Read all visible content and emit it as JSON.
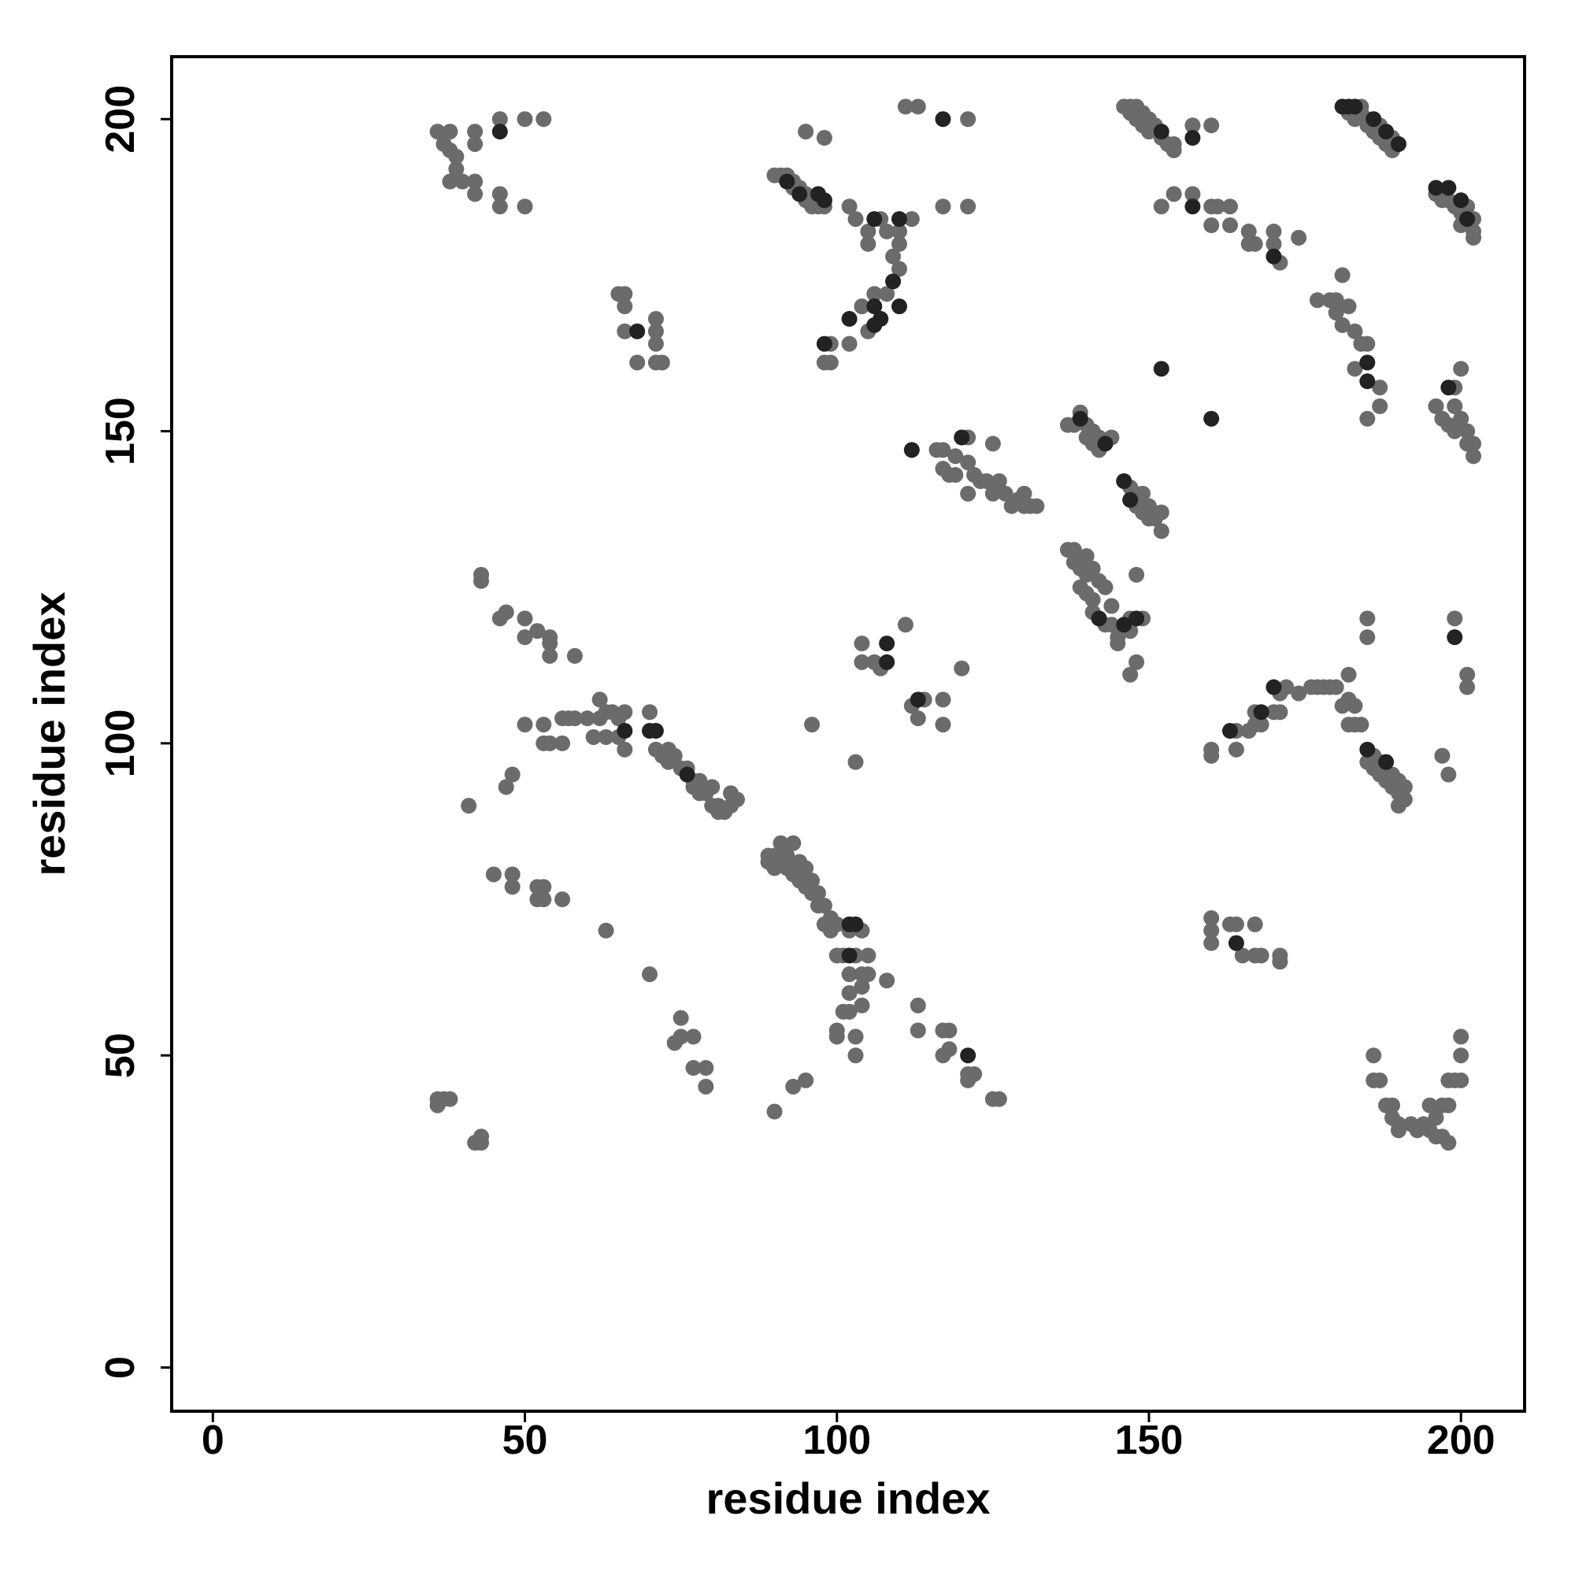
{
  "chart_data": {
    "type": "scatter",
    "xlabel": "residue index",
    "ylabel": "residue index",
    "xlim": [
      -6.6,
      210.2
    ],
    "ylim": [
      -7,
      210
    ],
    "xticks": [
      0,
      50,
      100,
      150,
      200
    ],
    "yticks": [
      0,
      50,
      100,
      150,
      200
    ],
    "series": [
      {
        "color": "#6b6b6b",
        "x": [
          36,
          37,
          38,
          38,
          39,
          39,
          38,
          40,
          42,
          42,
          42,
          42,
          46,
          46,
          46,
          50,
          50,
          53,
          65,
          66,
          66,
          66,
          68,
          71,
          71,
          71,
          71,
          72,
          90,
          91,
          92,
          93,
          93,
          94,
          95,
          95,
          96,
          96,
          97,
          98,
          95,
          98,
          102,
          103,
          105,
          105,
          107,
          108,
          109,
          110,
          110,
          110,
          112,
          104,
          106,
          108,
          105,
          102,
          99,
          98,
          99,
          111,
          113,
          121,
          117,
          121,
          146,
          147,
          147,
          148,
          148,
          149,
          149,
          150,
          150,
          151,
          152,
          153,
          154,
          154,
          157,
          160,
          152,
          154,
          157,
          160,
          160,
          161,
          163,
          163,
          166,
          166,
          167,
          170,
          170,
          171,
          174,
          177,
          179,
          180,
          180,
          181,
          182,
          181,
          183,
          184,
          185,
          187,
          183,
          185,
          187,
          182,
          183,
          184,
          184,
          185,
          185,
          186,
          187,
          187,
          188,
          189,
          189,
          196,
          197,
          197,
          198,
          199,
          200,
          201,
          202,
          202,
          200,
          202,
          196,
          197,
          198,
          199,
          199,
          200,
          200,
          201,
          201,
          202,
          202,
          199,
          137,
          138,
          139,
          140,
          140,
          141,
          141,
          142,
          142,
          144,
          116,
          117,
          117,
          119,
          119,
          121,
          121,
          122,
          123,
          124,
          125,
          126,
          127,
          128,
          129,
          130,
          130,
          131,
          132,
          121,
          125,
          118,
          147,
          148,
          148,
          149,
          149,
          150,
          150,
          151,
          152,
          152,
          137,
          138,
          138,
          139,
          139,
          140,
          140,
          140,
          141,
          141,
          141,
          142,
          143,
          143,
          144,
          144,
          145,
          145,
          147,
          147,
          148,
          147,
          149,
          148,
          96,
          104,
          104,
          106,
          107,
          111,
          112,
          114,
          117,
          113,
          117,
          120,
          103,
          43,
          43,
          46,
          47,
          50,
          50,
          52,
          54,
          54,
          54,
          58,
          56,
          57,
          58,
          60,
          61,
          62,
          62,
          63,
          63,
          64,
          65,
          65,
          66,
          66,
          70,
          71,
          72,
          73,
          73,
          74,
          75,
          76,
          77,
          77,
          78,
          78,
          79,
          80,
          80,
          81,
          81,
          82,
          83,
          84,
          83,
          50,
          53,
          53,
          54,
          56,
          48,
          47,
          41,
          89,
          89,
          90,
          90,
          91,
          91,
          92,
          92,
          93,
          93,
          94,
          94,
          95,
          95,
          96,
          96,
          97,
          97,
          98,
          98,
          99,
          99,
          100,
          102,
          100,
          101,
          103,
          105,
          102,
          104,
          105,
          102,
          104,
          104,
          101,
          102,
          100,
          100,
          103,
          103,
          104,
          108,
          113,
          113,
          117,
          118,
          117,
          118,
          121,
          121,
          122,
          125,
          126,
          95,
          93,
          90,
          45,
          48,
          48,
          52,
          53,
          52,
          53,
          56,
          63,
          70,
          75,
          75,
          74,
          77,
          77,
          79,
          79,
          36,
          37,
          38,
          36,
          42,
          43,
          43,
          160,
          160,
          164,
          164,
          166,
          167,
          167,
          168,
          171,
          171,
          170,
          172,
          174,
          176,
          177,
          178,
          179,
          180,
          182,
          182,
          181,
          183,
          182,
          183,
          184,
          185,
          186,
          186,
          187,
          187,
          188,
          189,
          189,
          190,
          190,
          191,
          191,
          190,
          185,
          185,
          197,
          198,
          199,
          201,
          201,
          160,
          160,
          160,
          163,
          164,
          165,
          167,
          167,
          168,
          171,
          171,
          186,
          186,
          187,
          188,
          189,
          189,
          190,
          190,
          193,
          194,
          195,
          196,
          196,
          197,
          197,
          198,
          198,
          198,
          199,
          200,
          200,
          200,
          195,
          192
        ],
        "values": [
          198,
          196,
          198,
          195,
          194,
          192,
          190,
          190,
          190,
          196,
          198,
          188,
          200,
          188,
          186,
          200,
          186,
          200,
          172,
          172,
          170,
          166,
          161,
          168,
          166,
          164,
          161,
          161,
          191,
          191,
          191,
          190,
          189,
          189,
          188,
          187,
          187,
          186,
          186,
          186,
          198,
          197,
          186,
          184,
          180,
          182,
          184,
          182,
          178,
          182,
          180,
          176,
          184,
          170,
          172,
          172,
          166,
          164,
          164,
          161,
          161,
          202,
          202,
          200,
          186,
          186,
          202,
          202,
          201,
          202,
          200,
          201,
          199,
          200,
          198,
          199,
          197,
          196,
          196,
          195,
          199,
          199,
          186,
          188,
          188,
          186,
          183,
          186,
          186,
          183,
          182,
          180,
          180,
          182,
          180,
          177,
          181,
          171,
          171,
          171,
          169,
          167,
          170,
          175,
          166,
          164,
          164,
          157,
          160,
          152,
          154,
          201,
          200,
          202,
          201,
          200,
          199,
          198,
          199,
          197,
          196,
          197,
          195,
          188,
          188,
          187,
          187,
          186,
          185,
          186,
          184,
          182,
          183,
          181,
          154,
          152,
          151,
          154,
          150,
          160,
          152,
          150,
          148,
          148,
          146,
          157,
          151,
          151,
          153,
          151,
          149,
          150,
          148,
          149,
          147,
          149,
          147,
          147,
          144,
          146,
          143,
          149,
          145,
          143,
          142,
          142,
          140,
          142,
          140,
          138,
          139,
          140,
          138,
          138,
          138,
          140,
          148,
          143,
          141,
          140,
          138,
          140,
          137,
          138,
          136,
          136,
          137,
          134,
          131,
          131,
          129,
          128,
          125,
          130,
          127,
          124,
          128,
          123,
          121,
          126,
          125,
          119,
          122,
          119,
          117,
          116,
          120,
          118,
          113,
          111,
          120,
          127,
          103,
          116,
          113,
          113,
          112,
          119,
          106,
          107,
          107,
          104,
          103,
          112,
          97,
          127,
          126,
          120,
          121,
          120,
          117,
          118,
          117,
          116,
          114,
          114,
          104,
          104,
          104,
          104,
          101,
          104,
          107,
          105,
          101,
          105,
          104,
          101,
          105,
          99,
          105,
          99,
          98,
          99,
          97,
          98,
          96,
          96,
          94,
          93,
          94,
          92,
          92,
          93,
          90,
          90,
          89,
          89,
          92,
          91,
          90,
          103,
          103,
          100,
          100,
          100,
          95,
          93,
          90,
          82,
          81,
          82,
          80,
          84,
          81,
          82,
          80,
          84,
          79,
          81,
          78,
          80,
          77,
          78,
          76,
          76,
          74,
          74,
          71,
          72,
          70,
          71,
          70,
          66,
          66,
          66,
          66,
          63,
          63,
          63,
          60,
          61,
          58,
          57,
          57,
          54,
          53,
          53,
          50,
          70,
          62,
          58,
          54,
          54,
          54,
          50,
          51,
          47,
          46,
          47,
          43,
          43,
          46,
          45,
          41,
          79,
          79,
          77,
          77,
          77,
          75,
          75,
          75,
          70,
          63,
          56,
          53,
          52,
          53,
          48,
          48,
          45,
          43,
          43,
          43,
          42,
          36,
          37,
          36,
          99,
          98,
          102,
          99,
          102,
          103,
          105,
          103,
          108,
          105,
          105,
          109,
          108,
          109,
          109,
          109,
          109,
          109,
          111,
          107,
          106,
          106,
          103,
          103,
          103,
          97,
          98,
          96,
          97,
          95,
          94,
          95,
          93,
          94,
          92,
          93,
          91,
          90,
          120,
          117,
          98,
          95,
          120,
          111,
          109,
          72,
          70,
          68,
          71,
          71,
          66,
          71,
          66,
          66,
          66,
          65,
          50,
          46,
          46,
          42,
          42,
          40,
          39,
          38,
          38,
          39,
          38,
          40,
          37,
          37,
          42,
          36,
          42,
          46,
          46,
          50,
          53,
          46,
          42,
          39
        ]
      },
      {
        "color": "#222222",
        "x": [
          46,
          68,
          92,
          94,
          97,
          98,
          106,
          109,
          110,
          102,
          106,
          107,
          110,
          98,
          106,
          117,
          152,
          157,
          157,
          170,
          185,
          185,
          181,
          182,
          183,
          186,
          188,
          190,
          196,
          198,
          200,
          201,
          198,
          139,
          143,
          112,
          120,
          146,
          147,
          142,
          146,
          148,
          108,
          108,
          113,
          66,
          70,
          71,
          76,
          102,
          103,
          102,
          121,
          163,
          168,
          170,
          185,
          188,
          199,
          164,
          152,
          160
        ],
        "values": [
          198,
          166,
          190,
          188,
          188,
          187,
          184,
          174,
          184,
          168,
          170,
          168,
          170,
          164,
          167,
          200,
          198,
          197,
          186,
          178,
          161,
          158,
          202,
          202,
          202,
          200,
          198,
          196,
          189,
          189,
          187,
          184,
          157,
          152,
          148,
          147,
          149,
          142,
          139,
          120,
          119,
          120,
          116,
          113,
          107,
          102,
          102,
          102,
          95,
          71,
          71,
          66,
          50,
          102,
          105,
          109,
          99,
          97,
          117,
          68,
          160,
          152
        ]
      }
    ]
  }
}
